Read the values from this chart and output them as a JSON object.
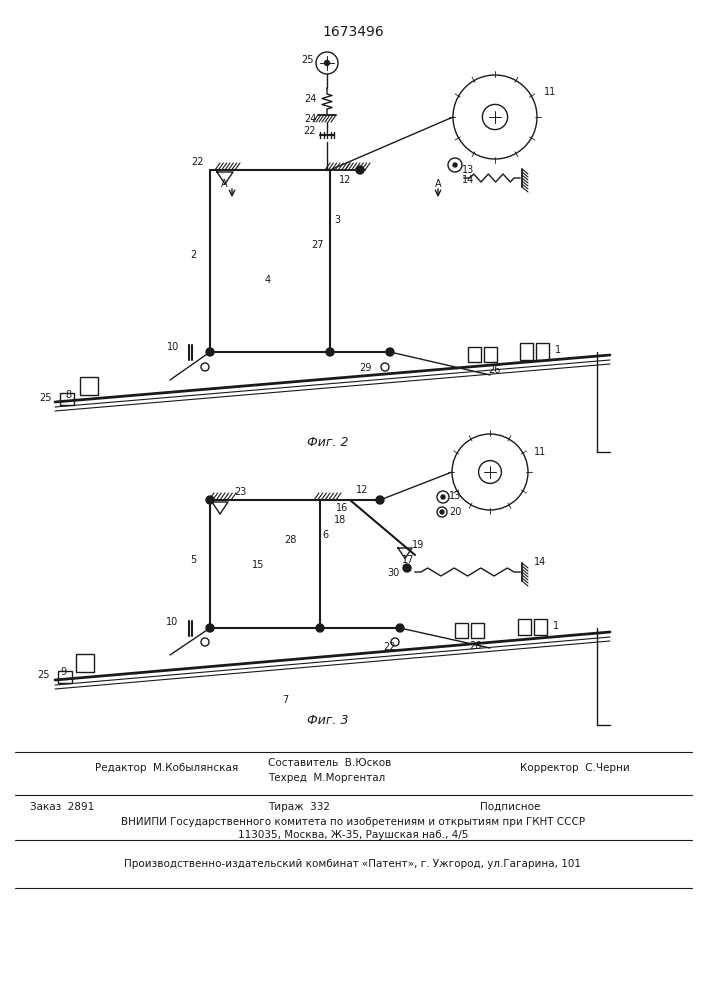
{
  "title": "1673496",
  "fig2_label": "Фиг. 2",
  "fig3_label": "Фиг. 3",
  "footer": {
    "editor": "Редактор  М.Кобылянская",
    "compiler": "Составитель  В.Юсков",
    "techred": "Техред  М.Моргентал",
    "corrector": "Корректор  С.Черни",
    "order": "Заказ  2891",
    "tirazh": "Тираж  332",
    "podpisnoe": "Подписное",
    "vniipи": "ВНИИПИ Государственного комитета по изобретениям и открытиям при ГКНТ СССР",
    "address": "113035, Москва, Ж-35, Раушская наб., 4/5",
    "plant": "Производственно-издательский комбинат «Патент», г. Ужгород, ул.Гагарина, 101"
  },
  "bg_color": "#ffffff",
  "line_color": "#1a1a1a"
}
